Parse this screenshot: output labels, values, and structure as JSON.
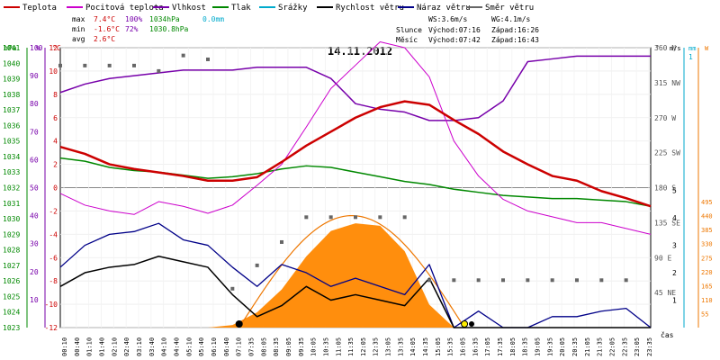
{
  "chart_data": {
    "type": "line",
    "title": "14.11.2012",
    "legend": [
      {
        "key": "teplota",
        "label": "Teplota",
        "color": "#cc0000"
      },
      {
        "key": "pocitova",
        "label": "Pocitová teplota",
        "color": "#cc00cc"
      },
      {
        "key": "vlhkost",
        "label": "Vlhkost",
        "color": "#7700aa"
      },
      {
        "key": "tlak",
        "label": "Tlak",
        "color": "#008800"
      },
      {
        "key": "srazky",
        "label": "Srážky",
        "color": "#00aacc"
      },
      {
        "key": "rychlost",
        "label": "Rychlost větru",
        "color": "#000000"
      },
      {
        "key": "naraz",
        "label": "Náraz větru",
        "color": "#000088"
      },
      {
        "key": "smer",
        "label": "Směr větru",
        "color": "#666666"
      }
    ],
    "stats": [
      {
        "label": "max",
        "temp": "7.4°C",
        "hum": "100%",
        "press": "1034hPa",
        "rain": "0.0mm"
      },
      {
        "label": "min",
        "temp": "-1.6°C",
        "hum": "72%",
        "press": "1030.8hPa"
      },
      {
        "label": "avg",
        "temp": "2.6°C"
      }
    ],
    "info": {
      "ws": "WS:3.6m/s",
      "wg": "WG:4.1m/s",
      "slunce": "Slunce",
      "mesic": "Měsíc",
      "slunce_vychod": "Východ:07:16",
      "slunce_zapad": "Západ:16:26",
      "mesic_vychod": "Východ:07:42",
      "mesic_zapad": "Západ:16:43"
    },
    "axes": {
      "hpa": {
        "label": "hPa",
        "ticks": [
          "1041",
          "1040",
          "1039",
          "1038",
          "1037",
          "1036",
          "1035",
          "1034",
          "1033",
          "1032",
          "1031",
          "1030",
          "1029",
          "1028",
          "1027",
          "1026",
          "1025",
          "1024",
          "1023"
        ]
      },
      "pct": {
        "label": "%",
        "ticks": [
          "100",
          "90",
          "80",
          "70",
          "60",
          "50",
          "40",
          "30",
          "20",
          "10"
        ]
      },
      "temp": {
        "label": "°C",
        "ticks": [
          "12",
          "10",
          "8",
          "6",
          "4",
          "2",
          "0",
          "-2",
          "-4",
          "-6",
          "-8",
          "-10",
          "-12"
        ]
      },
      "dir": {
        "label": "°",
        "ticks": [
          "360 N",
          "315 NW",
          "270 W",
          "225 SW",
          "180 S",
          "135 SE",
          "90 E",
          "45 NE"
        ]
      },
      "ms": {
        "label": "m/s",
        "ticks": [
          "5",
          "4",
          "3",
          "2",
          "1"
        ]
      },
      "mm": {
        "label": "mm",
        "ticks": [
          "1"
        ]
      },
      "wm2": {
        "label": "W",
        "ticks": [
          "495",
          "440",
          "385",
          "330",
          "275",
          "220",
          "165",
          "110",
          "55"
        ]
      },
      "time": {
        "label": "čas",
        "ticks": [
          "00:10",
          "00:40",
          "01:10",
          "01:40",
          "02:10",
          "02:40",
          "03:10",
          "03:40",
          "04:10",
          "04:40",
          "05:10",
          "05:40",
          "06:10",
          "06:40",
          "07:10",
          "07:35",
          "08:05",
          "08:35",
          "09:05",
          "09:35",
          "10:05",
          "10:35",
          "11:05",
          "11:35",
          "12:05",
          "12:35",
          "13:05",
          "13:35",
          "14:05",
          "14:35",
          "15:05",
          "15:35",
          "16:05",
          "16:35",
          "17:05",
          "17:35",
          "18:05",
          "18:35",
          "19:05",
          "19:35",
          "20:05",
          "20:35",
          "21:05",
          "21:35",
          "22:05",
          "22:35",
          "23:05",
          "23:35"
        ]
      }
    },
    "x_hours": [
      0,
      1,
      2,
      3,
      4,
      5,
      6,
      7,
      8,
      9,
      10,
      11,
      12,
      13,
      14,
      15,
      16,
      17,
      18,
      19,
      20,
      21,
      22,
      23,
      24
    ],
    "series": [
      {
        "key": "teplota",
        "name": "Teplota",
        "unit": "°C",
        "values": [
          3.5,
          2.9,
          2.0,
          1.6,
          1.3,
          1.0,
          0.6,
          0.6,
          0.9,
          2.2,
          3.6,
          4.8,
          6.0,
          6.9,
          7.4,
          7.1,
          5.8,
          4.6,
          3.1,
          2.0,
          1.0,
          0.6,
          -0.3,
          -0.9,
          -1.6
        ]
      },
      {
        "key": "pocitova",
        "name": "Pocitová teplota",
        "unit": "°C",
        "values": [
          -0.5,
          -1.5,
          -2.0,
          -2.3,
          -1.2,
          -1.6,
          -2.2,
          -1.5,
          0.2,
          2.0,
          5.2,
          8.5,
          10.5,
          12.5,
          12.0,
          9.5,
          4.0,
          1.0,
          -1.0,
          -2.0,
          -2.5,
          -3.0,
          -3.0,
          -3.5,
          -4.0
        ]
      },
      {
        "key": "vlhkost",
        "name": "Vlhkost",
        "unit": "%",
        "values": [
          84,
          87,
          89,
          90,
          91,
          92,
          92,
          92,
          93,
          93,
          93,
          89,
          80,
          78,
          77,
          74,
          74,
          75,
          81,
          95,
          96,
          97,
          97,
          97,
          97
        ]
      },
      {
        "key": "tlak",
        "name": "Tlak",
        "unit": "hPa",
        "values": [
          1033.9,
          1033.7,
          1033.3,
          1033.1,
          1033.0,
          1032.8,
          1032.6,
          1032.7,
          1032.9,
          1033.2,
          1033.4,
          1033.3,
          1033.0,
          1032.7,
          1032.4,
          1032.2,
          1031.9,
          1031.7,
          1031.5,
          1031.4,
          1031.3,
          1031.3,
          1031.2,
          1031.1,
          1030.8
        ]
      },
      {
        "key": "rychlost",
        "name": "Rychlost větru",
        "unit": "m/s",
        "values": [
          1.5,
          2.0,
          2.2,
          2.3,
          2.6,
          2.4,
          2.2,
          1.2,
          0.4,
          0.8,
          1.5,
          1.0,
          1.2,
          1.0,
          0.8,
          1.8,
          0,
          0,
          0,
          0,
          0,
          0,
          0,
          0,
          0
        ]
      },
      {
        "key": "naraz",
        "name": "Náraz větru",
        "unit": "m/s",
        "values": [
          2.2,
          3.0,
          3.4,
          3.5,
          3.8,
          3.2,
          3.0,
          2.2,
          1.5,
          2.3,
          2.0,
          1.5,
          1.8,
          1.5,
          1.2,
          2.3,
          0,
          0.6,
          0,
          0,
          0.4,
          0.4,
          0.6,
          0.7,
          0
        ]
      },
      {
        "key": "slunce",
        "name": "Sluneční záření",
        "unit": "W/m²",
        "values": [
          0,
          0,
          0,
          0,
          0,
          0,
          0,
          10,
          60,
          150,
          280,
          380,
          410,
          400,
          300,
          90,
          0,
          0,
          0,
          0,
          0,
          0,
          0,
          0,
          0
        ]
      },
      {
        "key": "smer",
        "name": "Směr větru",
        "unit": "°",
        "values": [
          337,
          337,
          337,
          337,
          330,
          350,
          345,
          50,
          80,
          110,
          142,
          142,
          142,
          142,
          142,
          61,
          61,
          61,
          61,
          61,
          61,
          61,
          61,
          61,
          61
        ]
      }
    ]
  }
}
